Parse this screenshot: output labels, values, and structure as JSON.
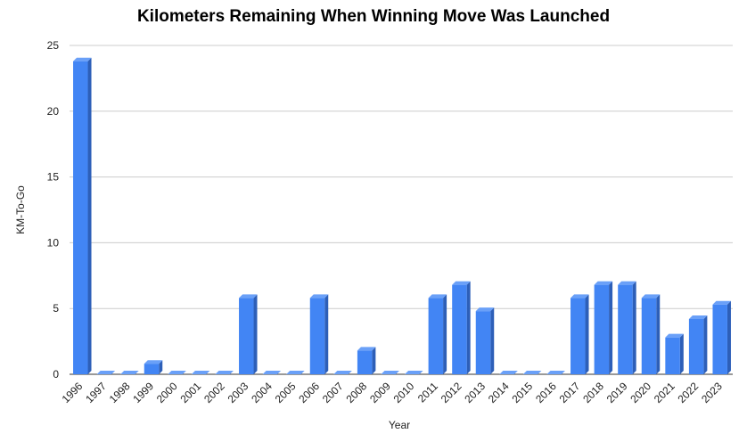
{
  "chart_data": {
    "type": "bar",
    "title": "Kilometers Remaining When Winning Move Was Launched",
    "xlabel": "Year",
    "ylabel": "KM-To-Go",
    "ylim": [
      0,
      25
    ],
    "yticks": [
      0,
      5,
      10,
      15,
      20,
      25
    ],
    "grid": true,
    "legend": "none",
    "style": "3d-bar",
    "colors": {
      "bar_front": "#4285f4",
      "bar_top": "#6aa0f8",
      "bar_side": "#2d5fb8"
    },
    "categories": [
      "1996",
      "1997",
      "1998",
      "1999",
      "2000",
      "2001",
      "2002",
      "2003",
      "2004",
      "2005",
      "2006",
      "2007",
      "2008",
      "2009",
      "2010",
      "2011",
      "2012",
      "2013",
      "2014",
      "2015",
      "2016",
      "2017",
      "2018",
      "2019",
      "2020",
      "2021",
      "2022",
      "2023"
    ],
    "values": [
      23.8,
      0,
      0,
      0.8,
      0,
      0,
      0,
      5.8,
      0,
      0,
      5.8,
      0,
      1.8,
      0,
      0,
      5.8,
      6.8,
      4.8,
      0,
      0,
      0,
      5.8,
      6.8,
      6.8,
      5.8,
      2.8,
      4.2,
      5.3
    ]
  }
}
